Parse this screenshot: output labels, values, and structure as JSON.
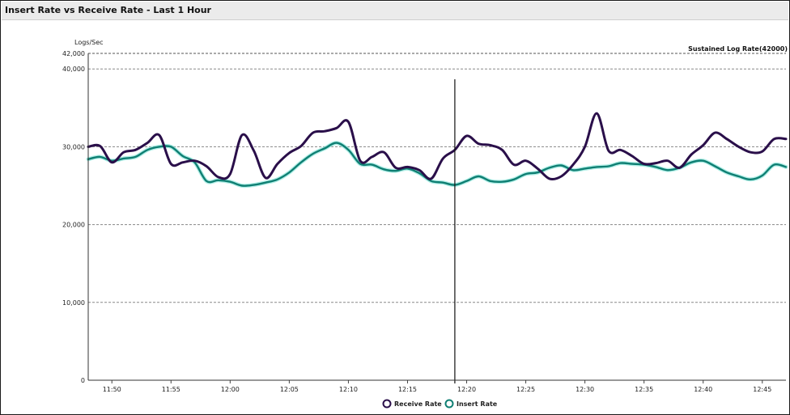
{
  "window": {
    "title": "Insert Rate vs Receive Rate - Last 1 Hour"
  },
  "chart_data": {
    "type": "line",
    "title": "Insert Rate vs Receive Rate - Last 1 Hour",
    "ylabel": "Logs/Sec",
    "ylim": [
      0,
      42000
    ],
    "ytick_labels": [
      "0",
      "10,000",
      "20,000",
      "30,000",
      "40,000",
      "42,000"
    ],
    "ytick_values": [
      0,
      10000,
      20000,
      30000,
      40000,
      42000
    ],
    "x_ticks": [
      "11:50",
      "11:55",
      "12:00",
      "12:05",
      "12:10",
      "12:15",
      "12:20",
      "12:25",
      "12:30",
      "12:35",
      "12:40",
      "12:45"
    ],
    "x_range": [
      "11:48",
      "12:47"
    ],
    "reference_line": {
      "label": "Sustained Log Rate(42000)",
      "value": 42000
    },
    "cursor_time": "12:19",
    "grid": true,
    "legend_position": "bottom",
    "series": [
      {
        "name": "Receive Rate",
        "color": "#2a0f4a",
        "x": [
          "11:48",
          "11:49",
          "11:50",
          "11:51",
          "11:52",
          "11:53",
          "11:54",
          "11:55",
          "11:56",
          "11:57",
          "11:58",
          "11:59",
          "12:00",
          "12:01",
          "12:02",
          "12:03",
          "12:04",
          "12:05",
          "12:06",
          "12:07",
          "12:08",
          "12:09",
          "12:10",
          "12:11",
          "12:12",
          "12:13",
          "12:14",
          "12:15",
          "12:16",
          "12:17",
          "12:18",
          "12:19",
          "12:20",
          "12:21",
          "12:22",
          "12:23",
          "12:24",
          "12:25",
          "12:26",
          "12:27",
          "12:28",
          "12:29",
          "12:30",
          "12:31",
          "12:32",
          "12:33",
          "12:34",
          "12:35",
          "12:36",
          "12:37",
          "12:38",
          "12:39",
          "12:40",
          "12:41",
          "12:42",
          "12:43",
          "12:44",
          "12:45",
          "12:46",
          "12:47"
        ],
        "values": [
          30000,
          30100,
          28000,
          29300,
          29600,
          30500,
          31500,
          27800,
          28000,
          28200,
          27500,
          26100,
          26500,
          31500,
          29500,
          26000,
          27800,
          29200,
          30100,
          31800,
          32000,
          32400,
          33200,
          28200,
          28700,
          29300,
          27300,
          27400,
          27000,
          25900,
          28500,
          29600,
          31400,
          30400,
          30200,
          29600,
          27700,
          28200,
          27200,
          25900,
          26200,
          27700,
          30000,
          34300,
          29500,
          29600,
          28800,
          27800,
          27900,
          28200,
          27300,
          29000,
          30200,
          31800,
          31000,
          30000,
          29300,
          29400,
          31000,
          31000
        ]
      },
      {
        "name": "Insert Rate",
        "color": "#0f7f73",
        "x": [
          "11:48",
          "11:49",
          "11:50",
          "11:51",
          "11:52",
          "11:53",
          "11:54",
          "11:55",
          "11:56",
          "11:57",
          "11:58",
          "11:59",
          "12:00",
          "12:01",
          "12:02",
          "12:03",
          "12:04",
          "12:05",
          "12:06",
          "12:07",
          "12:08",
          "12:09",
          "12:10",
          "12:11",
          "12:12",
          "12:13",
          "12:14",
          "12:15",
          "12:16",
          "12:17",
          "12:18",
          "12:19",
          "12:20",
          "12:21",
          "12:22",
          "12:23",
          "12:24",
          "12:25",
          "12:26",
          "12:27",
          "12:28",
          "12:29",
          "12:30",
          "12:31",
          "12:32",
          "12:33",
          "12:34",
          "12:35",
          "12:36",
          "12:37",
          "12:38",
          "12:39",
          "12:40",
          "12:41",
          "12:42",
          "12:43",
          "12:44",
          "12:45",
          "12:46",
          "12:47"
        ],
        "values": [
          28400,
          28700,
          28200,
          28500,
          28700,
          29600,
          30000,
          30000,
          28800,
          28000,
          25600,
          25700,
          25500,
          25000,
          25100,
          25400,
          25800,
          26700,
          28000,
          29100,
          29800,
          30500,
          29600,
          27800,
          27700,
          27100,
          26900,
          27200,
          26600,
          25600,
          25400,
          25100,
          25600,
          26200,
          25600,
          25500,
          25800,
          26500,
          26700,
          27300,
          27600,
          27000,
          27200,
          27400,
          27500,
          27900,
          27800,
          27700,
          27400,
          27000,
          27300,
          28000,
          28200,
          27500,
          26700,
          26200,
          25800,
          26300,
          27700,
          27400
        ]
      }
    ]
  }
}
